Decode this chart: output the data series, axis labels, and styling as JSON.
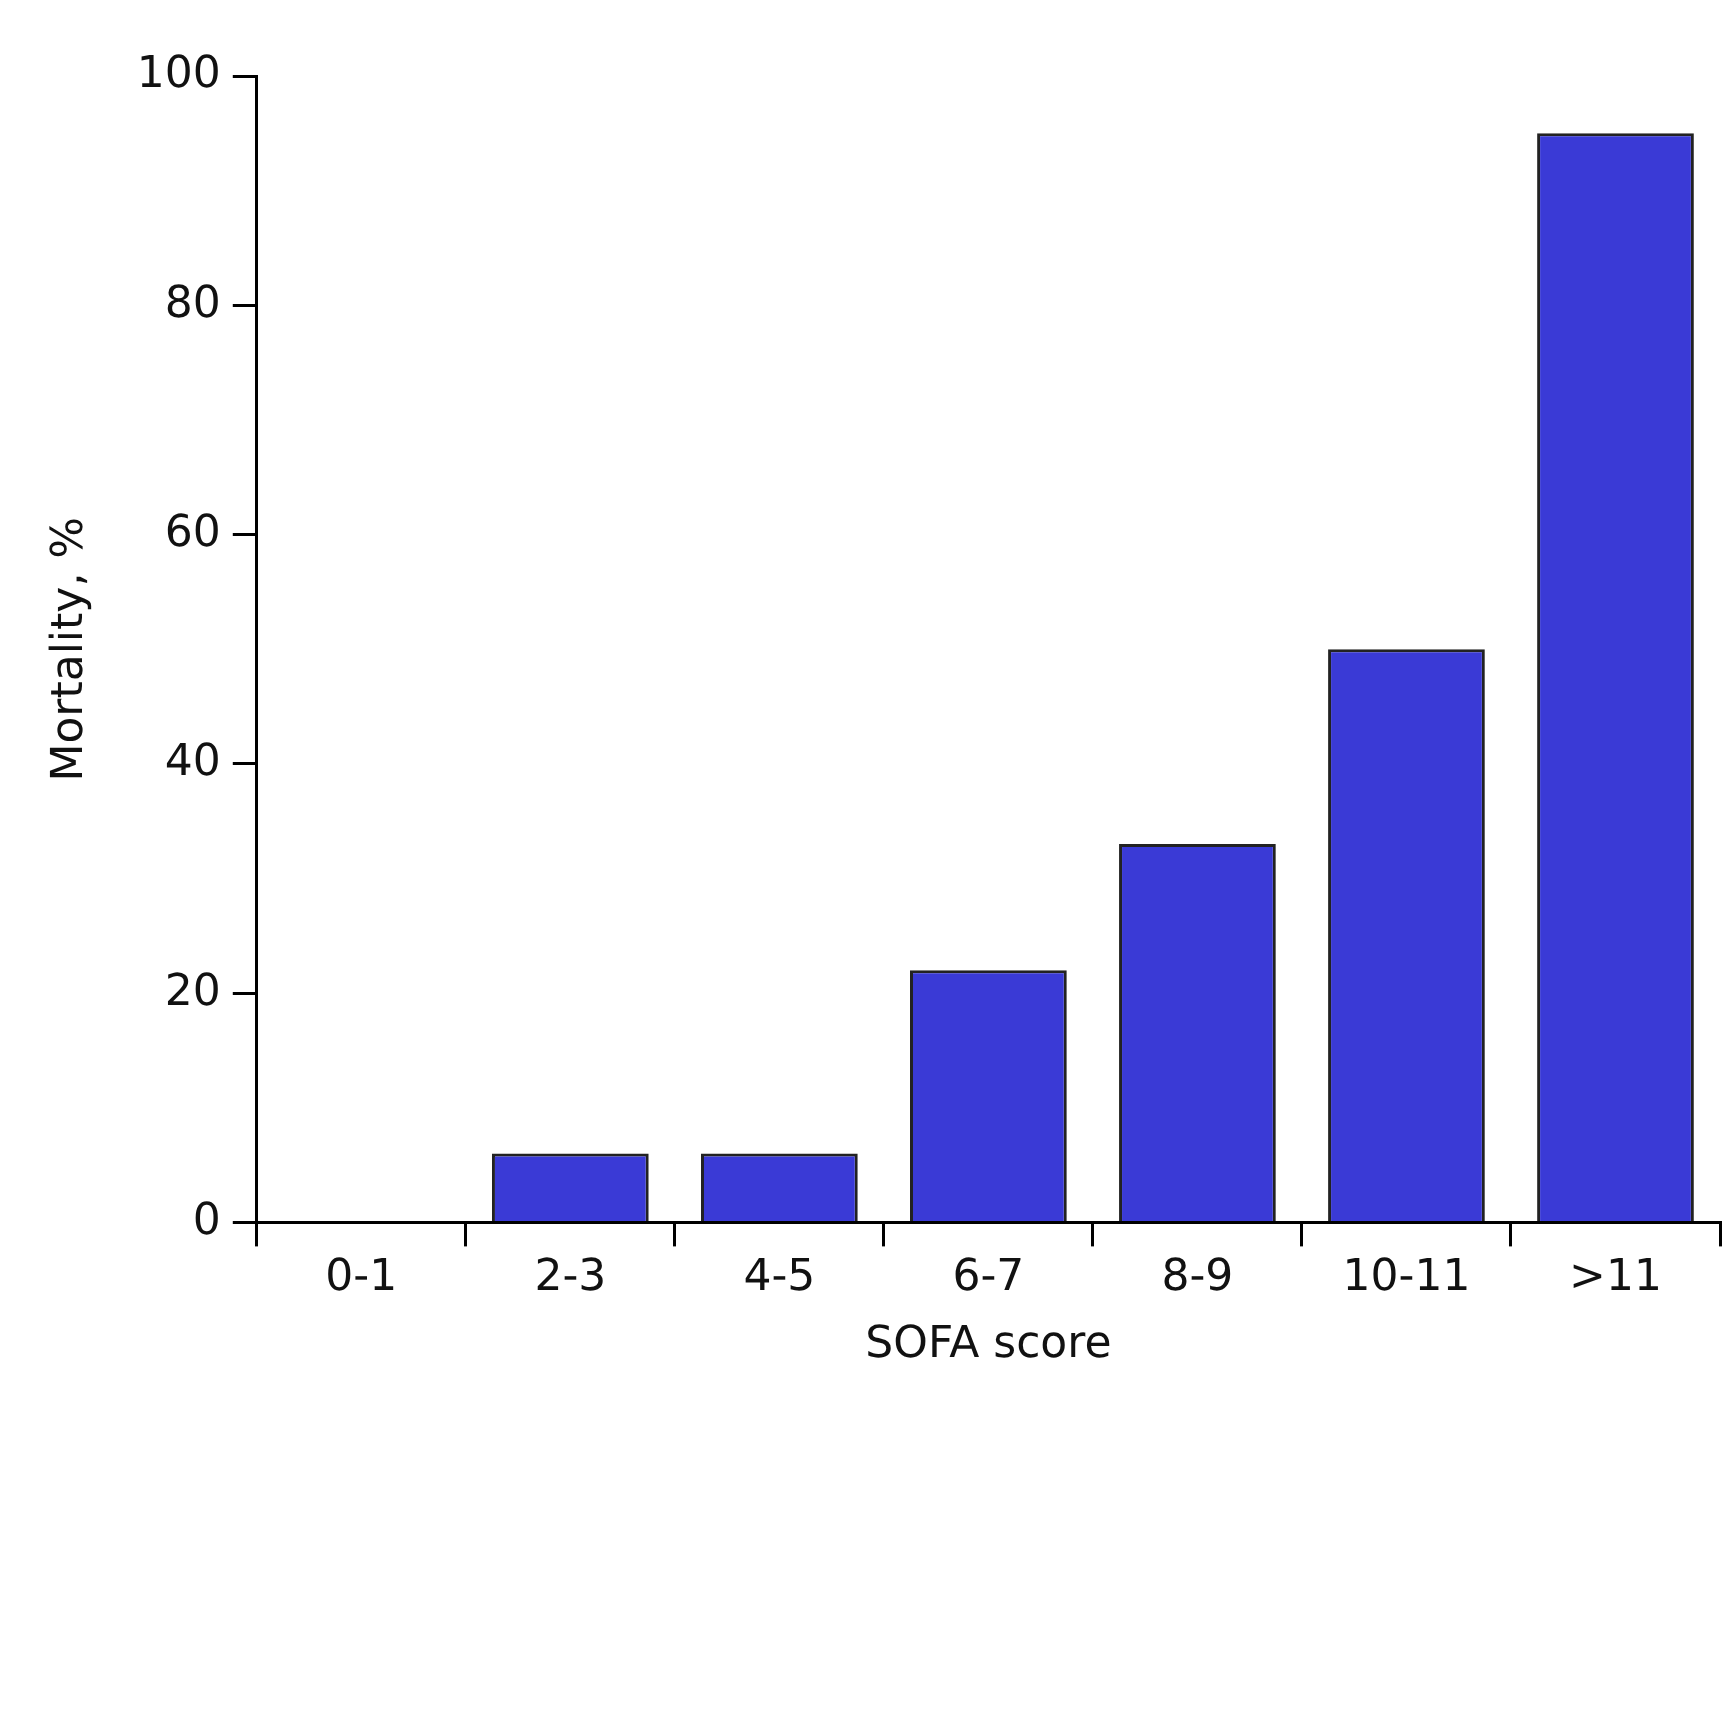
{
  "chart_data": {
    "type": "bar",
    "xlabel": "SOFA score",
    "ylabel": "Mortality, %",
    "categories": [
      "0-1",
      "2-3",
      "4-5",
      "6-7",
      "8-9",
      "10-11",
      ">11"
    ],
    "values": [
      0,
      6,
      6,
      22,
      33,
      50,
      95
    ],
    "color": "#3a3ad6",
    "ylim": [
      0,
      100
    ],
    "yticks": [
      0,
      20,
      40,
      60,
      80,
      100
    ],
    "grid": false,
    "legend": false
  }
}
